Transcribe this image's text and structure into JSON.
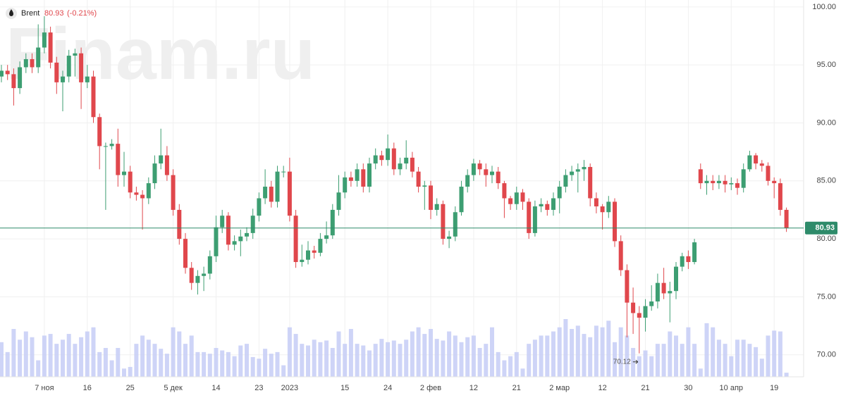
{
  "chart_data": {
    "type": "candlestick",
    "title": "Brent",
    "watermark": "Finam.ru",
    "change": {
      "value": -0.21,
      "label": "(-0.21%)"
    },
    "up_color": "#3d9e72",
    "down_color": "#e0474c",
    "volume_color": "#c5cdf6",
    "last_line_color": "#2e8b6a",
    "grid": true,
    "ylim": [
      68.1,
      100.6
    ],
    "yticks": [
      {
        "value": 70,
        "label": "70.00"
      },
      {
        "value": 75,
        "label": "75.00"
      },
      {
        "value": 80,
        "label": "80.00"
      },
      {
        "value": 85,
        "label": "85.00"
      },
      {
        "value": 90,
        "label": "90.00"
      },
      {
        "value": 95,
        "label": "95.00"
      },
      {
        "value": 100,
        "label": "100.00"
      }
    ],
    "low_annotation_index": 104,
    "categories": [
      null,
      null,
      null,
      null,
      null,
      null,
      null,
      "7 ноя",
      null,
      null,
      null,
      null,
      null,
      null,
      "16",
      null,
      null,
      null,
      null,
      null,
      null,
      "25",
      null,
      null,
      null,
      null,
      null,
      null,
      "5 дек",
      null,
      null,
      null,
      null,
      null,
      null,
      "14",
      null,
      null,
      null,
      null,
      null,
      null,
      "23",
      null,
      null,
      null,
      null,
      "2023",
      null,
      null,
      null,
      null,
      null,
      null,
      null,
      null,
      "15",
      null,
      null,
      null,
      null,
      null,
      null,
      "24",
      null,
      null,
      null,
      null,
      null,
      null,
      "2 фев",
      null,
      null,
      null,
      null,
      null,
      null,
      "12",
      null,
      null,
      null,
      null,
      null,
      null,
      "21",
      null,
      null,
      null,
      null,
      null,
      null,
      "2 мар",
      null,
      null,
      null,
      null,
      null,
      null,
      "12",
      null,
      null,
      null,
      null,
      null,
      null,
      "21",
      null,
      null,
      null,
      null,
      null,
      null,
      "30",
      null,
      null,
      null,
      null,
      null,
      null,
      "10 апр",
      null,
      null,
      null,
      null,
      null,
      null,
      "19",
      null,
      null
    ],
    "open": [
      94.0,
      94.5,
      94.2,
      93.0,
      94.8,
      95.5,
      94.8,
      96.5,
      97.8,
      95.2,
      93.5,
      94.0,
      95.8,
      96.0,
      93.5,
      94.0,
      90.5,
      88.0,
      88.0,
      88.2,
      85.5,
      85.8,
      84.0,
      83.8,
      83.5,
      84.8,
      86.5,
      87.2,
      85.5,
      82.5,
      80.0,
      77.5,
      76.2,
      76.8,
      77.0,
      78.5,
      81.0,
      82.0,
      79.5,
      79.8,
      80.2,
      80.5,
      82.0,
      83.5,
      84.5,
      83.2,
      85.8,
      85.8,
      82.0,
      78.0,
      78.2,
      79.0,
      78.8,
      80.0,
      80.3,
      82.5,
      84.0,
      85.3,
      85.0,
      86.0,
      84.5,
      86.5,
      87.2,
      86.8,
      87.8,
      86.0,
      86.5,
      87.0,
      85.8,
      84.5,
      84.6,
      82.5,
      83.0,
      80.0,
      80.2,
      82.3,
      84.5,
      85.5,
      86.5,
      86.0,
      85.5,
      85.8,
      84.8,
      83.5,
      83.0,
      84.0,
      83.2,
      80.5,
      82.8,
      83.0,
      82.5,
      83.5,
      84.5,
      85.5,
      85.8,
      86.0,
      86.2,
      83.5,
      82.8,
      82.3,
      83.2,
      79.8,
      77.3,
      74.5,
      73.6,
      73.2,
      74.2,
      74.6,
      76.2,
      75.3,
      75.5,
      77.6,
      78.5,
      78.0,
      86.0,
      84.8,
      85.0,
      84.8,
      85.0,
      84.7,
      84.8,
      84.4,
      86.0,
      87.2,
      86.5,
      86.3,
      85.0,
      84.8,
      82.5
    ],
    "high": [
      95.0,
      95.0,
      94.7,
      95.3,
      96.0,
      96.0,
      98.5,
      99.2,
      98.3,
      95.7,
      94.5,
      96.3,
      96.4,
      96.5,
      95.0,
      94.5,
      90.8,
      88.3,
      88.6,
      89.5,
      87.5,
      86.3,
      84.5,
      84.2,
      85.3,
      87.2,
      89.5,
      88.0,
      86.0,
      83.0,
      80.5,
      78.0,
      77.3,
      77.6,
      79.0,
      82.0,
      82.5,
      82.3,
      80.3,
      80.8,
      81.0,
      82.6,
      84.0,
      86.0,
      85.0,
      86.3,
      86.3,
      87.0,
      82.5,
      79.5,
      79.8,
      79.4,
      80.5,
      81.5,
      83.0,
      85.5,
      85.8,
      85.8,
      86.5,
      86.5,
      87.0,
      87.8,
      87.6,
      89.0,
      88.3,
      87.0,
      88.5,
      87.5,
      86.2,
      85.0,
      85.0,
      83.5,
      83.3,
      80.7,
      82.8,
      85.0,
      86.0,
      86.9,
      86.8,
      86.5,
      86.3,
      86.2,
      85.0,
      83.7,
      84.5,
      84.3,
      83.5,
      83.3,
      83.5,
      83.3,
      84.0,
      85.0,
      86.0,
      86.3,
      86.5,
      86.8,
      86.5,
      84.0,
      83.0,
      83.7,
      83.5,
      80.3,
      77.8,
      75.8,
      74.2,
      74.8,
      76.0,
      77.0,
      77.5,
      76.3,
      78.0,
      78.8,
      79.0,
      80.0,
      86.5,
      85.5,
      85.5,
      85.5,
      85.5,
      85.3,
      85.2,
      86.5,
      87.6,
      87.4,
      86.8,
      86.6,
      85.3,
      85.2,
      82.7
    ],
    "low": [
      93.5,
      93.7,
      91.5,
      92.5,
      94.3,
      94.3,
      94.3,
      96.0,
      94.7,
      92.5,
      91.0,
      93.5,
      94.0,
      91.2,
      93.0,
      90.0,
      86.0,
      82.5,
      87.7,
      84.5,
      84.5,
      83.5,
      83.3,
      80.8,
      83.0,
      84.3,
      86.0,
      85.0,
      82.0,
      79.5,
      77.0,
      75.6,
      75.2,
      75.5,
      76.5,
      78.0,
      80.5,
      79.0,
      79.0,
      78.5,
      79.8,
      80.0,
      81.5,
      83.0,
      82.7,
      82.7,
      85.3,
      81.5,
      77.5,
      77.6,
      77.8,
      78.3,
      78.5,
      79.6,
      80.0,
      82.0,
      83.5,
      84.5,
      84.5,
      84.0,
      84.0,
      86.0,
      86.3,
      86.3,
      85.5,
      85.5,
      86.0,
      85.3,
      84.0,
      82.5,
      81.7,
      82.0,
      79.5,
      79.2,
      79.8,
      82.0,
      84.0,
      85.0,
      85.5,
      84.5,
      84.8,
      84.3,
      81.8,
      82.5,
      82.5,
      82.5,
      80.0,
      80.2,
      82.3,
      82.0,
      82.0,
      82.2,
      84.0,
      85.0,
      84.0,
      85.0,
      82.8,
      82.2,
      80.8,
      81.8,
      79.3,
      76.8,
      71.5,
      71.8,
      70.12,
      72.0,
      73.8,
      74.0,
      74.8,
      72.8,
      74.8,
      77.2,
      77.4,
      77.8,
      84.3,
      83.8,
      84.2,
      84.3,
      84.0,
      84.2,
      83.8,
      84.0,
      85.8,
      86.0,
      85.8,
      84.6,
      83.5,
      82.0,
      80.6
    ],
    "close": [
      94.5,
      94.2,
      93.0,
      94.8,
      95.5,
      94.8,
      96.5,
      97.8,
      95.2,
      93.5,
      94.0,
      95.8,
      96.0,
      93.5,
      94.0,
      90.5,
      88.0,
      88.0,
      88.2,
      85.5,
      85.8,
      84.0,
      83.8,
      83.5,
      84.8,
      86.5,
      87.2,
      85.5,
      82.5,
      80.0,
      77.5,
      76.2,
      76.8,
      77.0,
      78.5,
      81.0,
      82.0,
      79.5,
      79.8,
      80.2,
      80.5,
      82.0,
      83.5,
      84.5,
      83.2,
      85.8,
      85.8,
      82.0,
      78.0,
      78.2,
      79.0,
      78.8,
      80.0,
      80.3,
      82.5,
      84.0,
      85.3,
      85.0,
      86.0,
      84.5,
      86.5,
      87.2,
      86.8,
      87.8,
      86.0,
      86.5,
      87.0,
      85.8,
      84.5,
      84.6,
      82.5,
      83.0,
      80.0,
      80.2,
      82.3,
      84.5,
      85.5,
      86.5,
      86.0,
      85.5,
      85.8,
      84.8,
      83.5,
      83.0,
      84.0,
      83.2,
      80.5,
      82.8,
      83.0,
      82.5,
      83.5,
      84.5,
      85.5,
      85.8,
      86.0,
      86.2,
      83.5,
      82.8,
      82.3,
      83.2,
      79.8,
      77.3,
      74.5,
      73.6,
      73.2,
      74.2,
      74.6,
      76.2,
      75.3,
      75.5,
      77.6,
      78.5,
      78.0,
      79.7,
      84.8,
      85.0,
      84.8,
      85.0,
      84.7,
      84.8,
      84.4,
      86.0,
      87.2,
      86.5,
      86.3,
      85.0,
      84.8,
      82.5,
      80.93
    ],
    "volume": [
      42,
      30,
      58,
      45,
      55,
      48,
      20,
      50,
      52,
      40,
      45,
      52,
      40,
      48,
      55,
      60,
      30,
      35,
      20,
      35,
      10,
      12,
      40,
      50,
      45,
      40,
      34,
      28,
      60,
      55,
      40,
      50,
      30,
      30,
      28,
      35,
      32,
      30,
      25,
      38,
      40,
      24,
      22,
      34,
      28,
      30,
      14,
      60,
      52,
      40,
      38,
      45,
      42,
      44,
      35,
      55,
      40,
      58,
      40,
      38,
      32,
      40,
      46,
      42,
      44,
      40,
      45,
      55,
      60,
      52,
      58,
      46,
      44,
      55,
      50,
      42,
      48,
      50,
      35,
      40,
      60,
      30,
      20,
      25,
      30,
      10,
      40,
      45,
      50,
      50,
      55,
      60,
      70,
      58,
      62,
      52,
      48,
      62,
      60,
      68,
      42,
      60,
      50,
      35,
      25,
      32,
      25,
      40,
      40,
      55,
      50,
      40,
      60,
      40,
      10,
      65,
      60,
      45,
      40,
      25,
      45,
      45,
      40,
      36,
      22,
      50,
      56,
      55,
      5
    ]
  }
}
